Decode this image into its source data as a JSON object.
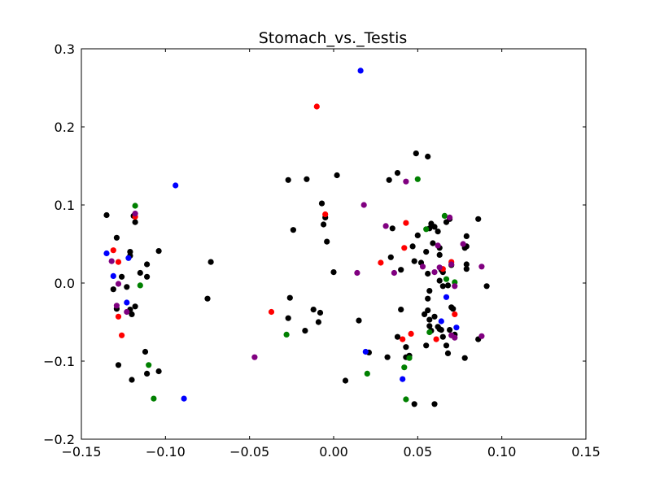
{
  "chart_data": {
    "type": "scatter",
    "title": "Stomach_vs._Testis",
    "xlabel": "",
    "ylabel": "",
    "xlim": [
      -0.15,
      0.15
    ],
    "ylim": [
      -0.2,
      0.3
    ],
    "xticks": [
      -0.15,
      -0.1,
      -0.05,
      0.0,
      0.05,
      0.1,
      0.15
    ],
    "xtick_labels": [
      "−0.15",
      "−0.10",
      "−0.05",
      "0.00",
      "0.05",
      "0.10",
      "0.15"
    ],
    "yticks": [
      -0.2,
      -0.1,
      0.0,
      0.1,
      0.2,
      0.3
    ],
    "ytick_labels": [
      "−0.2",
      "−0.1",
      "0.0",
      "0.1",
      "0.2",
      "0.3"
    ],
    "grid": false,
    "legend": "none",
    "colors": {
      "black": "#000000",
      "red": "#ff0000",
      "blue": "#0000ff",
      "green": "#008000",
      "purple": "#800080"
    },
    "series": [
      {
        "color": "#000000",
        "points": [
          [
            -0.135,
            0.087
          ],
          [
            -0.129,
            0.058
          ],
          [
            -0.119,
            0.086
          ],
          [
            -0.118,
            0.078
          ],
          [
            -0.115,
            0.013
          ],
          [
            -0.111,
            0.024
          ],
          [
            -0.111,
            0.008
          ],
          [
            -0.121,
            0.035
          ],
          [
            -0.121,
            0.04
          ],
          [
            -0.123,
            -0.005
          ],
          [
            -0.126,
            0.008
          ],
          [
            -0.131,
            -0.008
          ],
          [
            -0.129,
            -0.033
          ],
          [
            -0.12,
            -0.04
          ],
          [
            -0.121,
            -0.034
          ],
          [
            -0.118,
            -0.03
          ],
          [
            -0.128,
            -0.105
          ],
          [
            -0.12,
            -0.124
          ],
          [
            -0.112,
            -0.088
          ],
          [
            -0.111,
            -0.116
          ],
          [
            -0.104,
            -0.113
          ],
          [
            -0.104,
            0.041
          ],
          [
            -0.073,
            0.027
          ],
          [
            -0.075,
            -0.02
          ],
          [
            -0.027,
            0.132
          ],
          [
            -0.016,
            0.133
          ],
          [
            0.002,
            0.138
          ],
          [
            -0.007,
            0.102
          ],
          [
            -0.005,
            0.084
          ],
          [
            -0.006,
            0.075
          ],
          [
            -0.004,
            0.053
          ],
          [
            0.0,
            0.014
          ],
          [
            -0.024,
            0.068
          ],
          [
            -0.026,
            -0.019
          ],
          [
            -0.027,
            -0.045
          ],
          [
            -0.012,
            -0.034
          ],
          [
            -0.008,
            -0.038
          ],
          [
            -0.009,
            -0.05
          ],
          [
            -0.017,
            -0.061
          ],
          [
            0.007,
            -0.125
          ],
          [
            0.015,
            -0.048
          ],
          [
            0.021,
            -0.089
          ],
          [
            0.033,
            0.132
          ],
          [
            0.038,
            0.141
          ],
          [
            0.049,
            0.166
          ],
          [
            0.056,
            0.162
          ],
          [
            0.035,
            0.07
          ],
          [
            0.04,
            0.017
          ],
          [
            0.034,
            0.033
          ],
          [
            0.047,
            0.047
          ],
          [
            0.048,
            0.028
          ],
          [
            0.05,
            0.061
          ],
          [
            0.052,
            0.026
          ],
          [
            0.055,
            0.04
          ],
          [
            0.056,
            0.012
          ],
          [
            0.057,
            0.07
          ],
          [
            0.058,
            0.076
          ],
          [
            0.059,
            0.051
          ],
          [
            0.06,
            0.072
          ],
          [
            0.062,
            0.066
          ],
          [
            0.063,
            0.045
          ],
          [
            0.063,
            0.036
          ],
          [
            0.064,
            0.017
          ],
          [
            0.065,
            0.014
          ],
          [
            0.067,
            0.078
          ],
          [
            0.069,
            0.082
          ],
          [
            0.07,
            0.023
          ],
          [
            0.063,
            0.003
          ],
          [
            0.065,
            -0.004
          ],
          [
            0.068,
            -0.003
          ],
          [
            0.057,
            -0.01
          ],
          [
            0.056,
            -0.02
          ],
          [
            0.054,
            -0.04
          ],
          [
            0.056,
            -0.035
          ],
          [
            0.057,
            -0.047
          ],
          [
            0.057,
            -0.055
          ],
          [
            0.058,
            -0.061
          ],
          [
            0.06,
            -0.043
          ],
          [
            0.062,
            -0.056
          ],
          [
            0.063,
            -0.059
          ],
          [
            0.064,
            -0.06
          ],
          [
            0.065,
            -0.069
          ],
          [
            0.067,
            -0.08
          ],
          [
            0.068,
            -0.09
          ],
          [
            0.07,
            -0.031
          ],
          [
            0.071,
            -0.033
          ],
          [
            0.069,
            -0.06
          ],
          [
            0.072,
            -0.066
          ],
          [
            0.04,
            -0.034
          ],
          [
            0.038,
            -0.069
          ],
          [
            0.043,
            -0.082
          ],
          [
            0.043,
            -0.095
          ],
          [
            0.045,
            -0.093
          ],
          [
            0.048,
            -0.155
          ],
          [
            0.055,
            -0.08
          ],
          [
            0.06,
            -0.155
          ],
          [
            0.032,
            -0.095
          ],
          [
            0.078,
            0.045
          ],
          [
            0.079,
            0.06
          ],
          [
            0.079,
            0.047
          ],
          [
            0.079,
            0.024
          ],
          [
            0.079,
            0.018
          ],
          [
            0.086,
            0.082
          ],
          [
            0.091,
            -0.004
          ],
          [
            0.078,
            -0.096
          ],
          [
            0.086,
            -0.072
          ]
        ]
      },
      {
        "color": "#ff0000",
        "points": [
          [
            -0.131,
            0.042
          ],
          [
            -0.128,
            0.027
          ],
          [
            -0.118,
            0.085
          ],
          [
            -0.128,
            -0.043
          ],
          [
            -0.126,
            -0.067
          ],
          [
            -0.01,
            0.226
          ],
          [
            -0.005,
            0.088
          ],
          [
            -0.037,
            -0.037
          ],
          [
            0.028,
            0.026
          ],
          [
            0.042,
            0.045
          ],
          [
            0.043,
            0.077
          ],
          [
            0.065,
            0.018
          ],
          [
            0.07,
            0.027
          ],
          [
            0.072,
            -0.04
          ],
          [
            0.046,
            -0.065
          ],
          [
            0.041,
            -0.072
          ],
          [
            0.061,
            -0.072
          ]
        ]
      },
      {
        "color": "#0000ff",
        "points": [
          [
            -0.135,
            0.038
          ],
          [
            -0.131,
            0.009
          ],
          [
            -0.122,
            0.032
          ],
          [
            -0.123,
            -0.025
          ],
          [
            -0.094,
            0.125
          ],
          [
            -0.089,
            -0.148
          ],
          [
            0.016,
            0.272
          ],
          [
            0.019,
            -0.088
          ],
          [
            0.041,
            -0.123
          ],
          [
            0.064,
            -0.049
          ],
          [
            0.067,
            -0.018
          ],
          [
            0.073,
            -0.057
          ]
        ]
      },
      {
        "color": "#008000",
        "points": [
          [
            -0.118,
            0.099
          ],
          [
            -0.115,
            -0.003
          ],
          [
            -0.11,
            -0.105
          ],
          [
            -0.107,
            -0.148
          ],
          [
            -0.028,
            -0.066
          ],
          [
            0.02,
            -0.116
          ],
          [
            0.042,
            -0.108
          ],
          [
            0.043,
            -0.149
          ],
          [
            0.045,
            -0.096
          ],
          [
            0.05,
            0.133
          ],
          [
            0.055,
            0.069
          ],
          [
            0.057,
            -0.063
          ],
          [
            0.066,
            0.086
          ],
          [
            0.067,
            0.005
          ],
          [
            0.072,
            0.001
          ]
        ]
      },
      {
        "color": "#800080",
        "points": [
          [
            -0.132,
            0.028
          ],
          [
            -0.128,
            -0.001
          ],
          [
            -0.129,
            -0.029
          ],
          [
            -0.123,
            -0.037
          ],
          [
            -0.118,
            0.089
          ],
          [
            -0.047,
            -0.095
          ],
          [
            0.014,
            0.013
          ],
          [
            0.018,
            0.1
          ],
          [
            0.031,
            0.073
          ],
          [
            0.036,
            0.013
          ],
          [
            0.043,
            0.13
          ],
          [
            0.053,
            0.021
          ],
          [
            0.062,
            0.048
          ],
          [
            0.063,
            0.02
          ],
          [
            0.06,
            0.014
          ],
          [
            0.069,
            0.084
          ],
          [
            0.07,
            0.024
          ],
          [
            0.072,
            -0.004
          ],
          [
            0.07,
            -0.067
          ],
          [
            0.072,
            -0.07
          ],
          [
            0.077,
            0.05
          ],
          [
            0.088,
            0.021
          ],
          [
            0.088,
            -0.068
          ]
        ]
      }
    ]
  }
}
